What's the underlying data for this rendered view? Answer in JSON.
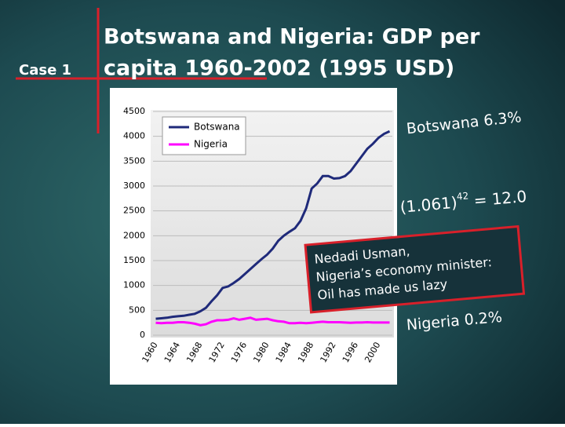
{
  "slide": {
    "case_label": "Case 1",
    "title_lines": [
      "Botswana and Nigeria: GDP per",
      "capita 1960-2002 (1995 USD)"
    ],
    "annotations": {
      "botswana_rate": "Botswana 6.3%",
      "compound_base": "(1.061)",
      "compound_exp": "42",
      "compound_result": "= 12.0",
      "quote_lines": [
        "Nedadi Usman,",
        "Nigeria’s economy minister:",
        "Oil has made us lazy"
      ],
      "nigeria_rate": "Nigeria 0.2%"
    }
  },
  "chart_data": {
    "type": "line",
    "categories": [
      "1960",
      null,
      null,
      null,
      "1964",
      null,
      null,
      null,
      "1968",
      null,
      null,
      null,
      "1972",
      null,
      null,
      null,
      "1976",
      null,
      null,
      null,
      "1980",
      null,
      null,
      null,
      "1984",
      null,
      null,
      null,
      "1988",
      null,
      null,
      null,
      "1992",
      null,
      null,
      null,
      "1996",
      null,
      null,
      null,
      "2000",
      null,
      null
    ],
    "series": [
      {
        "name": "Botswana",
        "color": "#1f2a7a",
        "values": [
          330,
          340,
          350,
          370,
          380,
          390,
          410,
          430,
          480,
          550,
          680,
          800,
          950,
          980,
          1050,
          1130,
          1230,
          1330,
          1430,
          1530,
          1620,
          1740,
          1900,
          2000,
          2080,
          2150,
          2300,
          2550,
          2950,
          3050,
          3200,
          3200,
          3150,
          3160,
          3200,
          3300,
          3450,
          3600,
          3750,
          3850,
          3970,
          4050,
          4100
        ]
      },
      {
        "name": "Nigeria",
        "color": "#ff00ff",
        "values": [
          250,
          240,
          250,
          250,
          260,
          260,
          250,
          230,
          200,
          220,
          270,
          300,
          300,
          310,
          340,
          310,
          330,
          350,
          310,
          320,
          330,
          300,
          280,
          270,
          240,
          240,
          250,
          240,
          250,
          260,
          270,
          260,
          260,
          260,
          255,
          250,
          255,
          255,
          260,
          255,
          255,
          255,
          255
        ]
      }
    ],
    "ylim": [
      0,
      4500
    ],
    "yticks": [
      0,
      500,
      1000,
      1500,
      2000,
      2500,
      3000,
      3500,
      4000,
      4500
    ],
    "grid": true,
    "legend": "upper-left"
  }
}
